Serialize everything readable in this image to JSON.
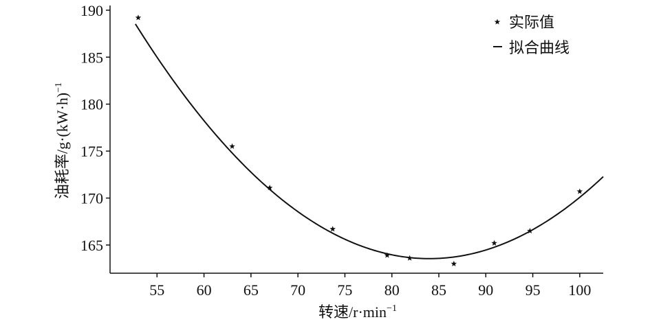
{
  "chart_data": {
    "type": "scatter",
    "xlabel": "转速/r·min",
    "xlabel_sup": "−1",
    "ylabel": "油耗率/g·(kW·h)",
    "ylabel_sup": "−1",
    "xlim": [
      50,
      102.5
    ],
    "ylim": [
      162,
      190.5
    ],
    "x_ticks": [
      55,
      60,
      65,
      70,
      75,
      80,
      85,
      90,
      95,
      100
    ],
    "y_ticks": [
      165,
      170,
      175,
      180,
      185,
      190
    ],
    "grid": false,
    "legend_position": "top-right",
    "series": [
      {
        "name": "实际值",
        "kind": "points",
        "marker": "star",
        "points": [
          {
            "x": 53.0,
            "y": 189.2
          },
          {
            "x": 63.0,
            "y": 175.5
          },
          {
            "x": 67.0,
            "y": 171.1
          },
          {
            "x": 73.7,
            "y": 166.7
          },
          {
            "x": 79.5,
            "y": 163.9
          },
          {
            "x": 81.9,
            "y": 163.6
          },
          {
            "x": 86.6,
            "y": 163.0
          },
          {
            "x": 90.9,
            "y": 165.2
          },
          {
            "x": 94.7,
            "y": 166.5
          },
          {
            "x": 100.0,
            "y": 170.7
          }
        ]
      },
      {
        "name": "拟合曲线",
        "kind": "fit",
        "x_range": [
          52.7,
          102.5
        ],
        "vertex": {
          "x": 84.0,
          "y": 163.55
        },
        "curvature": 0.0255
      }
    ]
  }
}
